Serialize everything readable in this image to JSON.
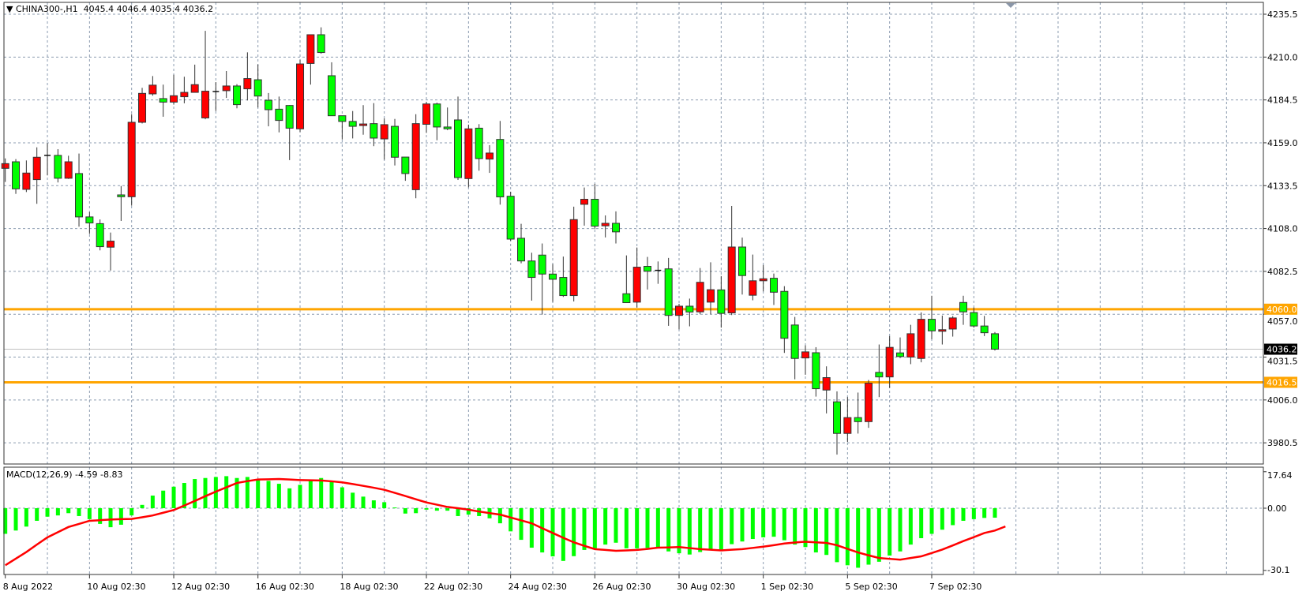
{
  "header": {
    "menu_icon": "triangle-down-icon",
    "symbol": "CHINA300-,H1",
    "ohlc": "4045.4 4046.4 4035.4 4036.2"
  },
  "macd_header": {
    "label": "MACD(12,26,9)",
    "values": "-4.59 -8.83"
  },
  "colors": {
    "bull_candle": "#FF0000",
    "bear_candle": "#00FF00",
    "histogram": "#00FF00",
    "signal_line": "#FF0000",
    "horizontal_lines": "#FFA500",
    "bid_line": "#C0C0C0",
    "grid": "#8C9CB0"
  },
  "chart_data": [
    {
      "type": "candlestick",
      "symbol": "CHINA300-",
      "timeframe": "H1",
      "ylim": [
        3968,
        4242
      ],
      "y_ticks": [
        "4235.5",
        "4210.0",
        "4184.5",
        "4159.0",
        "4133.5",
        "4108.0",
        "4082.5",
        "4057.0",
        "4031.5",
        "4006.0",
        "3980.5"
      ],
      "grid": true,
      "x_tick_labels": [
        {
          "bar": 0,
          "label": "8 Aug 2022"
        },
        {
          "bar": 8,
          "label": "10 Aug 02:30"
        },
        {
          "bar": 16,
          "label": "12 Aug 02:30"
        },
        {
          "bar": 24,
          "label": "16 Aug 02:30"
        },
        {
          "bar": 32,
          "label": "18 Aug 02:30"
        },
        {
          "bar": 40,
          "label": "22 Aug 02:30"
        },
        {
          "bar": 48,
          "label": "24 Aug 02:30"
        },
        {
          "bar": 56,
          "label": "26 Aug 02:30"
        },
        {
          "bar": 64,
          "label": "30 Aug 02:30"
        },
        {
          "bar": 72,
          "label": "1 Sep 02:30"
        },
        {
          "bar": 80,
          "label": "5 Sep 02:30"
        },
        {
          "bar": 88,
          "label": "7 Sep 02:30"
        }
      ],
      "ohlc_fields": [
        "open",
        "high",
        "low",
        "close"
      ],
      "candles": [
        [
          4143.8,
          4149.7,
          4135.7,
          4146.6
        ],
        [
          4147.7,
          4149.3,
          4128.6,
          4131.6
        ],
        [
          4131.3,
          4148.5,
          4129.7,
          4141.0
        ],
        [
          4137.1,
          4156.3,
          4122.7,
          4150.4
        ],
        [
          4151.5,
          4158.8,
          4139.6,
          4151.5
        ],
        [
          4151.5,
          4155.2,
          4135.4,
          4137.9
        ],
        [
          4137.9,
          4151.3,
          4137.5,
          4147.7
        ],
        [
          4140.7,
          4152.6,
          4109.1,
          4114.9
        ],
        [
          4114.9,
          4117.7,
          4104.8,
          4111.3
        ],
        [
          4110.9,
          4113.4,
          4095.0,
          4097.2
        ],
        [
          4096.9,
          4105.6,
          4083.0,
          4100.5
        ],
        [
          4128.0,
          4133.3,
          4112.5,
          4126.9
        ],
        [
          4126.9,
          4176.0,
          4121.6,
          4171.2
        ],
        [
          4171.2,
          4191.7,
          4170.5,
          4188.4
        ],
        [
          4188.1,
          4198.7,
          4187.0,
          4193.3
        ],
        [
          4185.3,
          4193.6,
          4174.5,
          4183.2
        ],
        [
          4183.2,
          4199.5,
          4181.7,
          4187.0
        ],
        [
          4186.4,
          4198.3,
          4182.5,
          4189.0
        ],
        [
          4189.0,
          4205.5,
          4188.9,
          4193.6
        ],
        [
          4173.8,
          4225.6,
          4173.0,
          4189.7
        ],
        [
          4189.5,
          4195.1,
          4177.9,
          4189.5
        ],
        [
          4190.0,
          4201.7,
          4185.7,
          4192.8
        ],
        [
          4192.8,
          4193.9,
          4179.5,
          4181.7
        ],
        [
          4191.1,
          4212.8,
          4184.2,
          4197.2
        ],
        [
          4196.5,
          4205.6,
          4180.0,
          4186.8
        ],
        [
          4184.3,
          4188.6,
          4168.8,
          4178.7
        ],
        [
          4179.0,
          4186.5,
          4165.2,
          4172.3
        ],
        [
          4181.2,
          4181.4,
          4148.7,
          4167.7
        ],
        [
          4167.3,
          4208.4,
          4165.4,
          4205.9
        ],
        [
          4206.2,
          4223.3,
          4193.6,
          4223.3
        ],
        [
          4223.3,
          4227.7,
          4212.0,
          4212.7
        ],
        [
          4198.9,
          4206.9,
          4175.0,
          4175.1
        ],
        [
          4175.1,
          4175.1,
          4161.0,
          4171.7
        ],
        [
          4171.7,
          4177.9,
          4161.6,
          4168.8
        ],
        [
          4169.3,
          4181.4,
          4163.8,
          4170.2
        ],
        [
          4170.4,
          4182.6,
          4157.0,
          4161.8
        ],
        [
          4161.3,
          4173.5,
          4149.0,
          4169.8
        ],
        [
          4168.8,
          4173.2,
          4145.5,
          4150.4
        ],
        [
          4150.5,
          4150.5,
          4136.4,
          4140.7
        ],
        [
          4131.1,
          4176.0,
          4126.0,
          4170.4
        ],
        [
          4170.0,
          4183.4,
          4164.9,
          4182.1
        ],
        [
          4182.1,
          4182.9,
          4160.5,
          4168.4
        ],
        [
          4168.4,
          4180.0,
          4166.5,
          4167.3
        ],
        [
          4172.6,
          4186.5,
          4136.9,
          4138.3
        ],
        [
          4137.7,
          4169.8,
          4132.5,
          4167.3
        ],
        [
          4167.7,
          4170.1,
          4142.4,
          4149.6
        ],
        [
          4149.3,
          4157.6,
          4141.1,
          4152.9
        ],
        [
          4161.0,
          4172.0,
          4122.2,
          4126.8
        ],
        [
          4127.2,
          4129.9,
          4100.6,
          4101.7
        ],
        [
          4102.2,
          4110.8,
          4087.3,
          4088.7
        ],
        [
          4088.7,
          4093.6,
          4065.1,
          4078.9
        ],
        [
          4092.2,
          4099.1,
          4056.8,
          4080.9
        ],
        [
          4080.9,
          4086.9,
          4064.3,
          4077.8
        ],
        [
          4078.9,
          4091.3,
          4067.3,
          4068.1
        ],
        [
          4068.1,
          4121.0,
          4064.6,
          4113.3
        ],
        [
          4122.4,
          4132.4,
          4109.7,
          4125.4
        ],
        [
          4125.4,
          4134.6,
          4107.7,
          4109.4
        ],
        [
          4109.6,
          4115.8,
          4102.7,
          4111.1
        ],
        [
          4111.1,
          4118.2,
          4099.1,
          4106.0
        ],
        [
          4069.2,
          4092.0,
          4063.9,
          4063.9
        ],
        [
          4064.2,
          4096.7,
          4061.0,
          4085.0
        ],
        [
          4085.5,
          4091.1,
          4071.7,
          4082.6
        ],
        [
          4083.1,
          4088.4,
          4075.1,
          4083.1
        ],
        [
          4084.0,
          4090.5,
          4050.1,
          4056.3
        ],
        [
          4056.3,
          4063.2,
          4048.0,
          4061.8
        ],
        [
          4061.8,
          4066.3,
          4049.8,
          4058.3
        ],
        [
          4058.4,
          4084.5,
          4057.0,
          4076.0
        ],
        [
          4064.2,
          4087.9,
          4057.0,
          4071.6
        ],
        [
          4071.5,
          4079.7,
          4049.0,
          4057.5
        ],
        [
          4057.8,
          4121.4,
          4056.5,
          4097.0
        ],
        [
          4097.0,
          4102.6,
          4068.7,
          4080.0
        ],
        [
          4068.3,
          4092.5,
          4065.3,
          4076.9
        ],
        [
          4076.9,
          4086.3,
          4070.6,
          4078.1
        ],
        [
          4078.4,
          4081.2,
          4062.5,
          4070.1
        ],
        [
          4070.6,
          4073.7,
          4034.0,
          4042.7
        ],
        [
          4050.6,
          4055.4,
          4018.3,
          4030.7
        ],
        [
          4031.0,
          4038.5,
          4021.0,
          4034.6
        ],
        [
          4034.1,
          4037.4,
          4008.0,
          4012.7
        ],
        [
          4011.9,
          4026.0,
          3998.0,
          4019.3
        ],
        [
          4004.9,
          4011.1,
          3973.5,
          3986.1
        ],
        [
          3986.1,
          4007.7,
          3981.0,
          3995.5
        ],
        [
          3995.5,
          4010.4,
          3986.0,
          3993.1
        ],
        [
          3993.1,
          4017.9,
          3989.4,
          4016.0
        ],
        [
          4022.4,
          4039.0,
          4007.7,
          4019.7
        ],
        [
          4019.7,
          4044.0,
          4013.2,
          4037.3
        ],
        [
          4034.0,
          4043.2,
          4030.9,
          4031.8
        ],
        [
          4031.5,
          4050.7,
          4027.3,
          4045.4
        ],
        [
          4030.7,
          4058.1,
          4028.4,
          4054.0
        ],
        [
          4054.0,
          4068.0,
          4042.1,
          4047.1
        ],
        [
          4047.0,
          4056.2,
          4039.0,
          4047.8
        ],
        [
          4048.2,
          4055.9,
          4043.7,
          4054.8
        ],
        [
          4064.0,
          4068.0,
          4050.7,
          4058.4
        ],
        [
          4058.0,
          4061.0,
          4049.0,
          4050.0
        ],
        [
          4050.0,
          4056.0,
          4044.0,
          4046.0
        ],
        [
          4045.4,
          4046.4,
          4035.4,
          4036.2
        ]
      ],
      "horizontal_lines": [
        {
          "price": 4060.0,
          "label": "4060.0"
        },
        {
          "price": 4016.5,
          "label": "4016.5"
        }
      ],
      "bid": {
        "price": 4036.2,
        "label": "4036.2"
      }
    },
    {
      "type": "bar+line",
      "indicator": "MACD(12,26,9)",
      "ylim": [
        -30.1,
        17.64
      ],
      "y_ticks": [
        "17.64",
        "0.00",
        "-30.1"
      ],
      "histogram": [
        -12.4,
        -10.8,
        -8.9,
        -6.1,
        -4.1,
        -3.5,
        -2.4,
        -3.8,
        -5.3,
        -7.6,
        -9.2,
        -8.0,
        -3.5,
        1.6,
        6.1,
        8.5,
        10.4,
        12.2,
        14.1,
        14.6,
        15.1,
        15.5,
        14.6,
        15.1,
        14.1,
        13.2,
        11.8,
        9.6,
        11.3,
        13.4,
        14.6,
        12.9,
        10.1,
        7.5,
        5.6,
        3.8,
        2.9,
        0.35,
        -2.6,
        -2.4,
        -0.7,
        -1.2,
        -1.2,
        -3.8,
        -3.1,
        -3.8,
        -4.9,
        -7.3,
        -11.2,
        -15.3,
        -19.1,
        -21.4,
        -23.3,
        -25.5,
        -23.2,
        -20.2,
        -19.4,
        -17.6,
        -16.7,
        -19.4,
        -19.4,
        -19.2,
        -19.1,
        -20.9,
        -21.8,
        -22.4,
        -21.2,
        -19.8,
        -20.0,
        -17.4,
        -16.1,
        -14.9,
        -14.1,
        -13.8,
        -15.5,
        -17.6,
        -18.8,
        -21.4,
        -22.6,
        -26.1,
        -27.6,
        -28.8,
        -27.3,
        -25.9,
        -22.9,
        -20.9,
        -17.6,
        -14.5,
        -12.4,
        -10.4,
        -8.2,
        -6.1,
        -5.3,
        -4.7,
        -4.59
      ],
      "signal": [
        -27.6,
        -24.4,
        -21.2,
        -17.6,
        -14.1,
        -11.6,
        -9.1,
        -7.6,
        -6.1,
        -5.8,
        -5.5,
        -5.3,
        -5.2,
        -4.4,
        -3.5,
        -2.2,
        -0.9,
        1.3,
        3.5,
        5.8,
        8.0,
        10.1,
        12.2,
        13.1,
        13.9,
        14.0,
        14.1,
        13.9,
        13.6,
        13.5,
        13.4,
        13.0,
        12.5,
        11.7,
        10.8,
        9.9,
        8.9,
        7.4,
        5.9,
        4.3,
        2.8,
        1.7,
        0.6,
        0.0,
        -0.7,
        -1.6,
        -2.4,
        -3.1,
        -4.5,
        -5.9,
        -7.3,
        -9.7,
        -12.0,
        -14.3,
        -16.5,
        -18.2,
        -19.8,
        -20.2,
        -20.6,
        -20.4,
        -20.2,
        -19.7,
        -19.1,
        -19.0,
        -18.8,
        -19.3,
        -19.8,
        -20.1,
        -20.4,
        -20.1,
        -19.8,
        -19.2,
        -18.6,
        -17.9,
        -17.1,
        -16.6,
        -16.2,
        -16.5,
        -16.8,
        -17.9,
        -19.7,
        -21.4,
        -22.8,
        -24.1,
        -24.5,
        -24.9,
        -24.1,
        -23.3,
        -21.7,
        -20.0,
        -18.0,
        -15.9,
        -14.0,
        -12.0,
        -10.8,
        -8.83
      ]
    }
  ]
}
